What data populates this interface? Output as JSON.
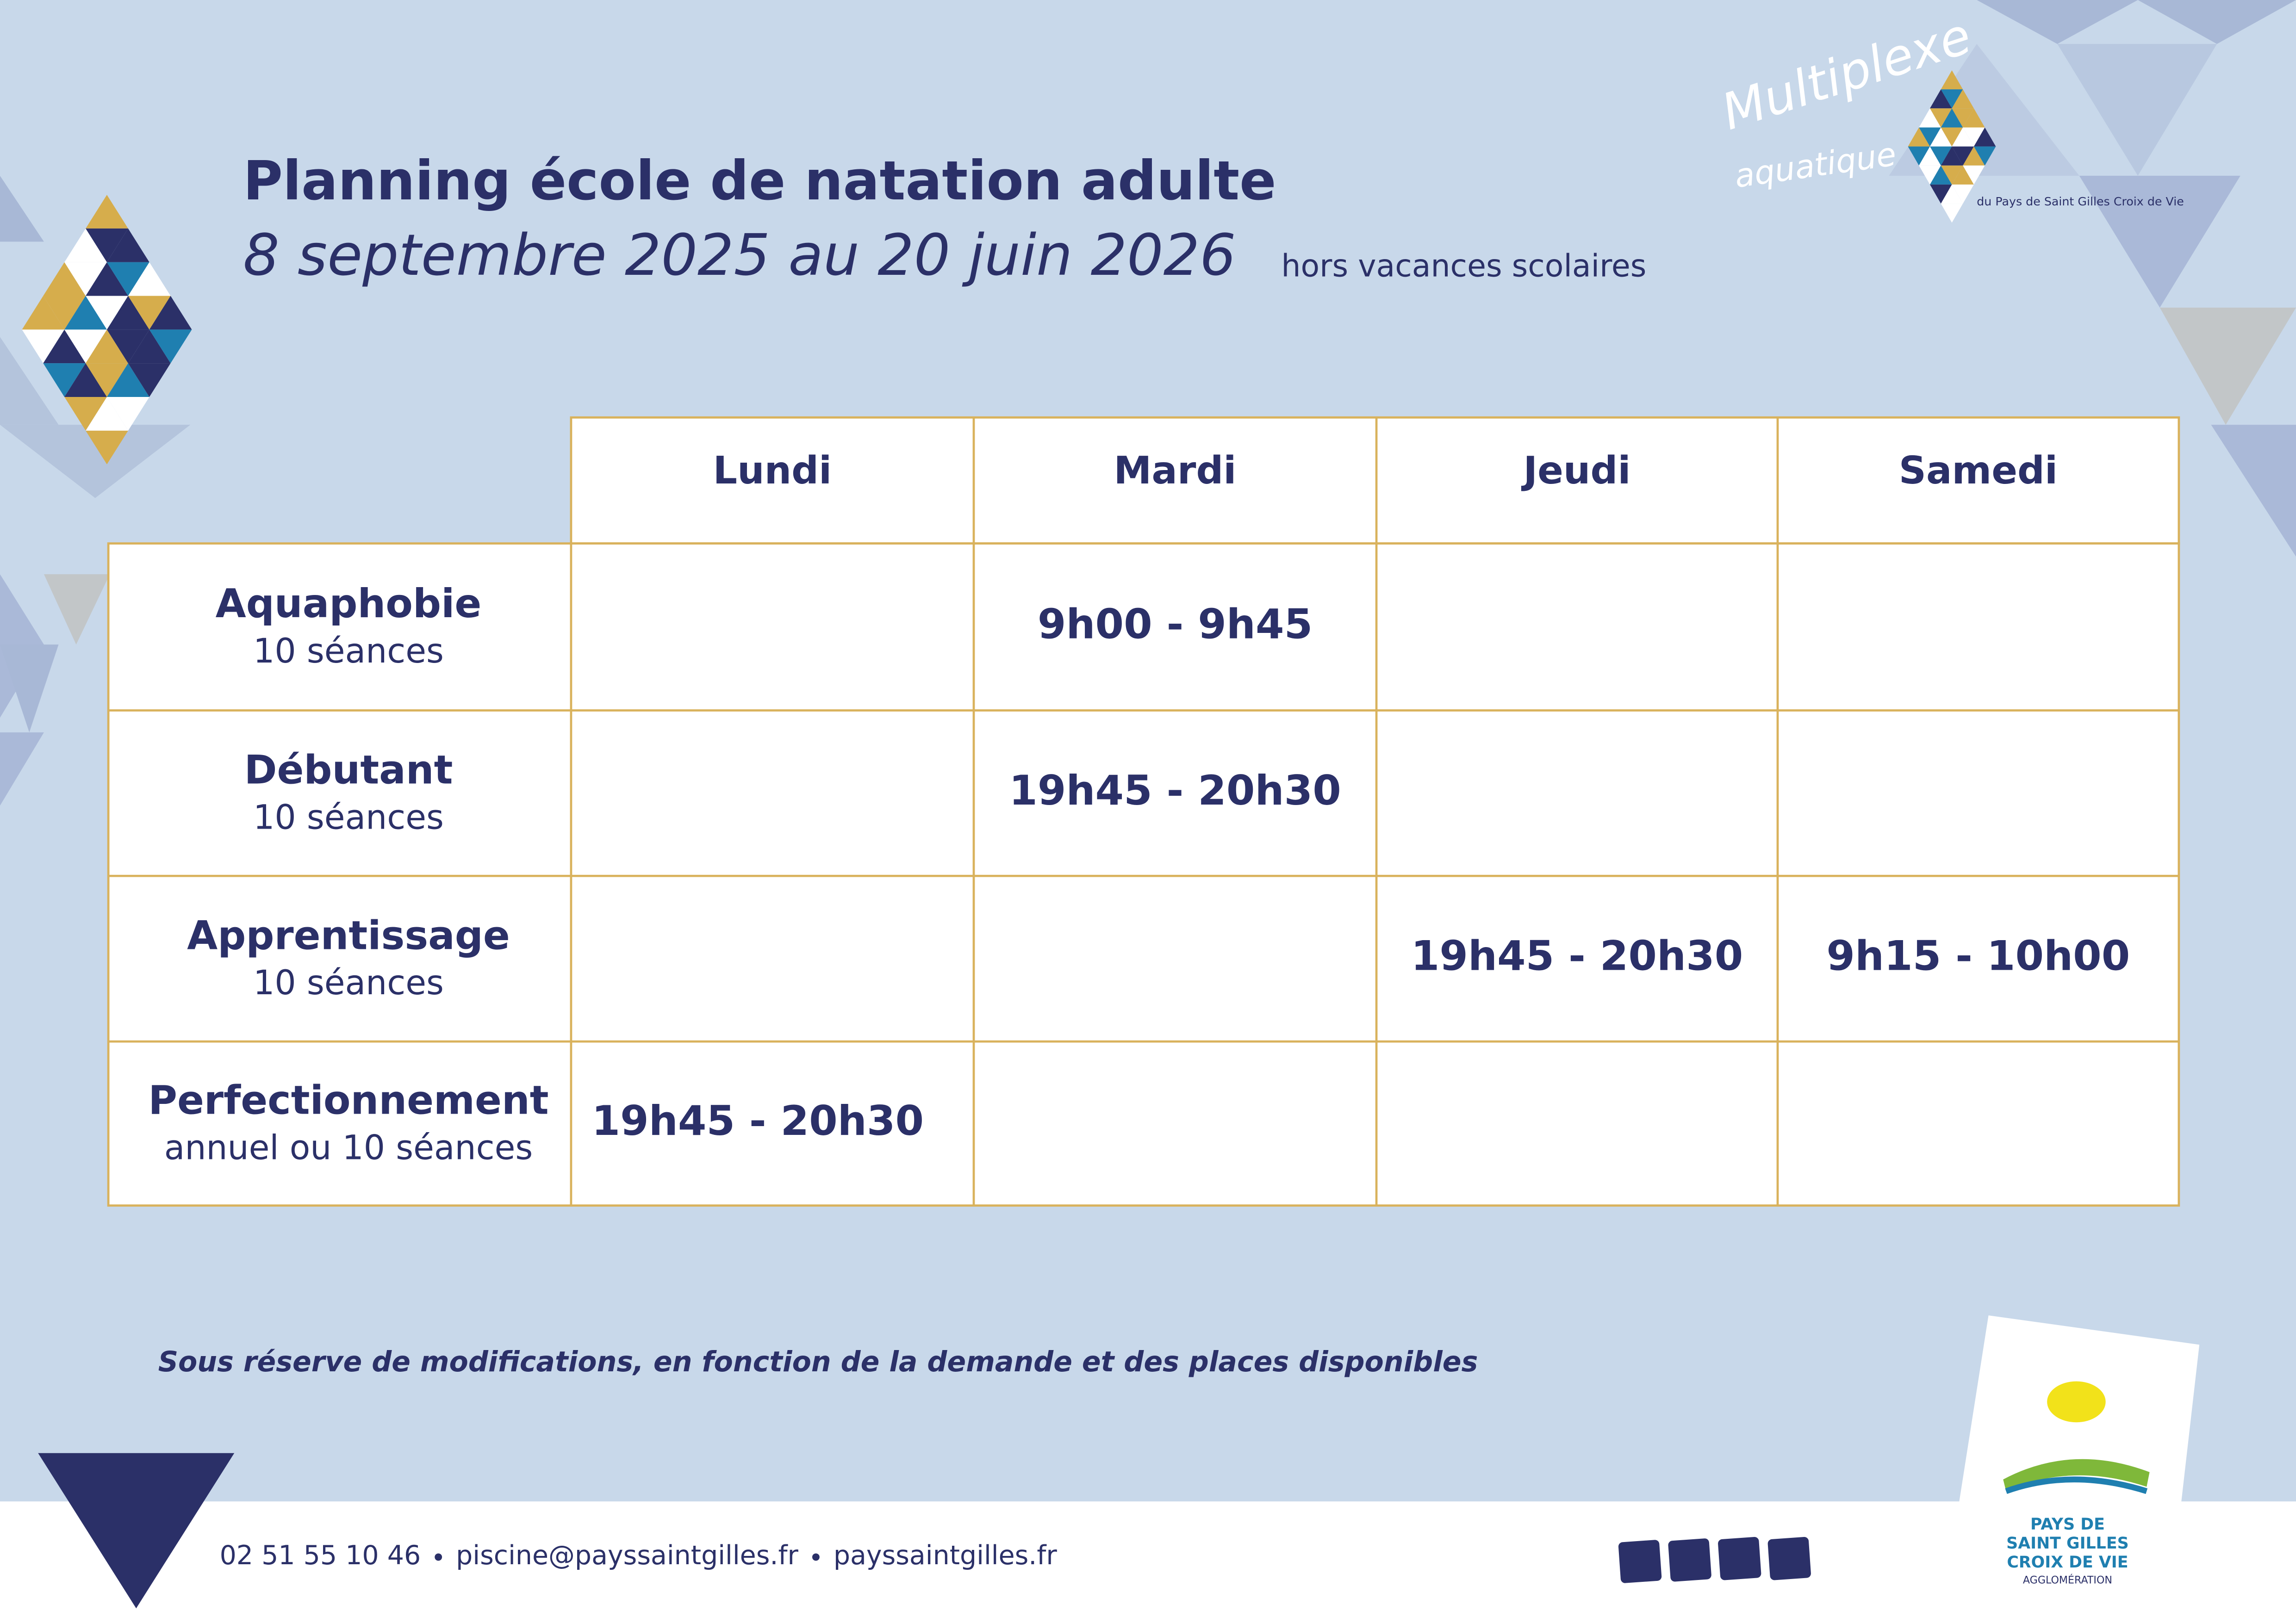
{
  "header": {
    "title": "Planning école de natation adulte",
    "subtitle": "8 septembre 2025 au 20 juin 2026",
    "note": "hors vacances scolaires"
  },
  "logo": {
    "line1": "Multiplexe",
    "line2": "aquatique",
    "line3": "du Pays de Saint Gilles Croix de Vie"
  },
  "table": {
    "columns": [
      "Lundi",
      "Mardi",
      "Jeudi",
      "Samedi"
    ],
    "rows": [
      {
        "label": "Aquaphobie",
        "sub": "10 séances",
        "cells": [
          null,
          "9h00 - 9h45",
          null,
          null
        ]
      },
      {
        "label": "Débutant",
        "sub": "10 séances",
        "cells": [
          null,
          "19h45 - 20h30",
          null,
          null
        ]
      },
      {
        "label": "Apprentissage",
        "sub": "10 séances",
        "cells": [
          null,
          null,
          "19h45 - 20h30",
          "9h15 - 10h00"
        ]
      },
      {
        "label": "Perfectionnement",
        "sub": "annuel ou 10 séances",
        "cells": [
          "19h45 - 20h30",
          null,
          null,
          null
        ]
      }
    ]
  },
  "disclaimer": "Sous réserve de modifications, en fonction de la demande et des places disponibles",
  "contact": [
    "02 51 55 10 46",
    "piscine@payssaintgilles.fr",
    "payssaintgilles.fr"
  ],
  "agglo": {
    "line1": "PAYS DE",
    "line2": "SAINT GILLES",
    "line3": "CROIX DE VIE",
    "line4": "AGGLOMÉRATION"
  }
}
